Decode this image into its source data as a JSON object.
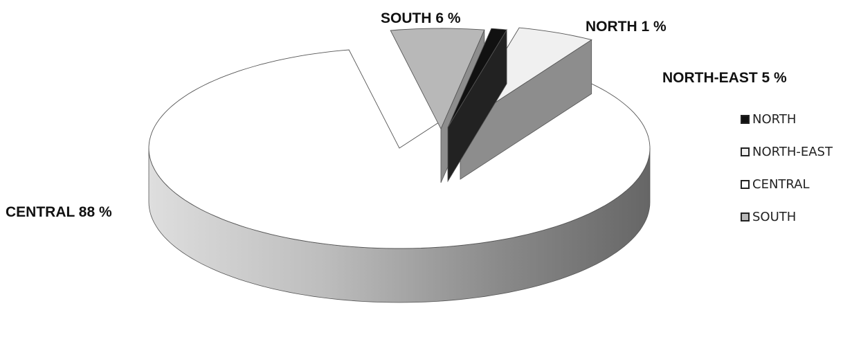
{
  "chart_data": {
    "type": "pie",
    "style": "3d-exploded",
    "slices": [
      {
        "name": "NORTH",
        "value": 1,
        "label": "NORTH 1 %",
        "color": "#111111"
      },
      {
        "name": "NORTH-EAST",
        "value": 5,
        "label": "NORTH-EAST 5 %",
        "color": "#f0f0f0"
      },
      {
        "name": "CENTRAL",
        "value": 88,
        "label": "CENTRAL 88 %",
        "color": "#ffffff"
      },
      {
        "name": "SOUTH",
        "value": 6,
        "label": "SOUTH 6 %",
        "color": "#b8b8b8"
      }
    ],
    "legend": {
      "placement": "right",
      "items": [
        "NORTH",
        "NORTH-EAST",
        "CENTRAL",
        "SOUTH"
      ]
    }
  }
}
